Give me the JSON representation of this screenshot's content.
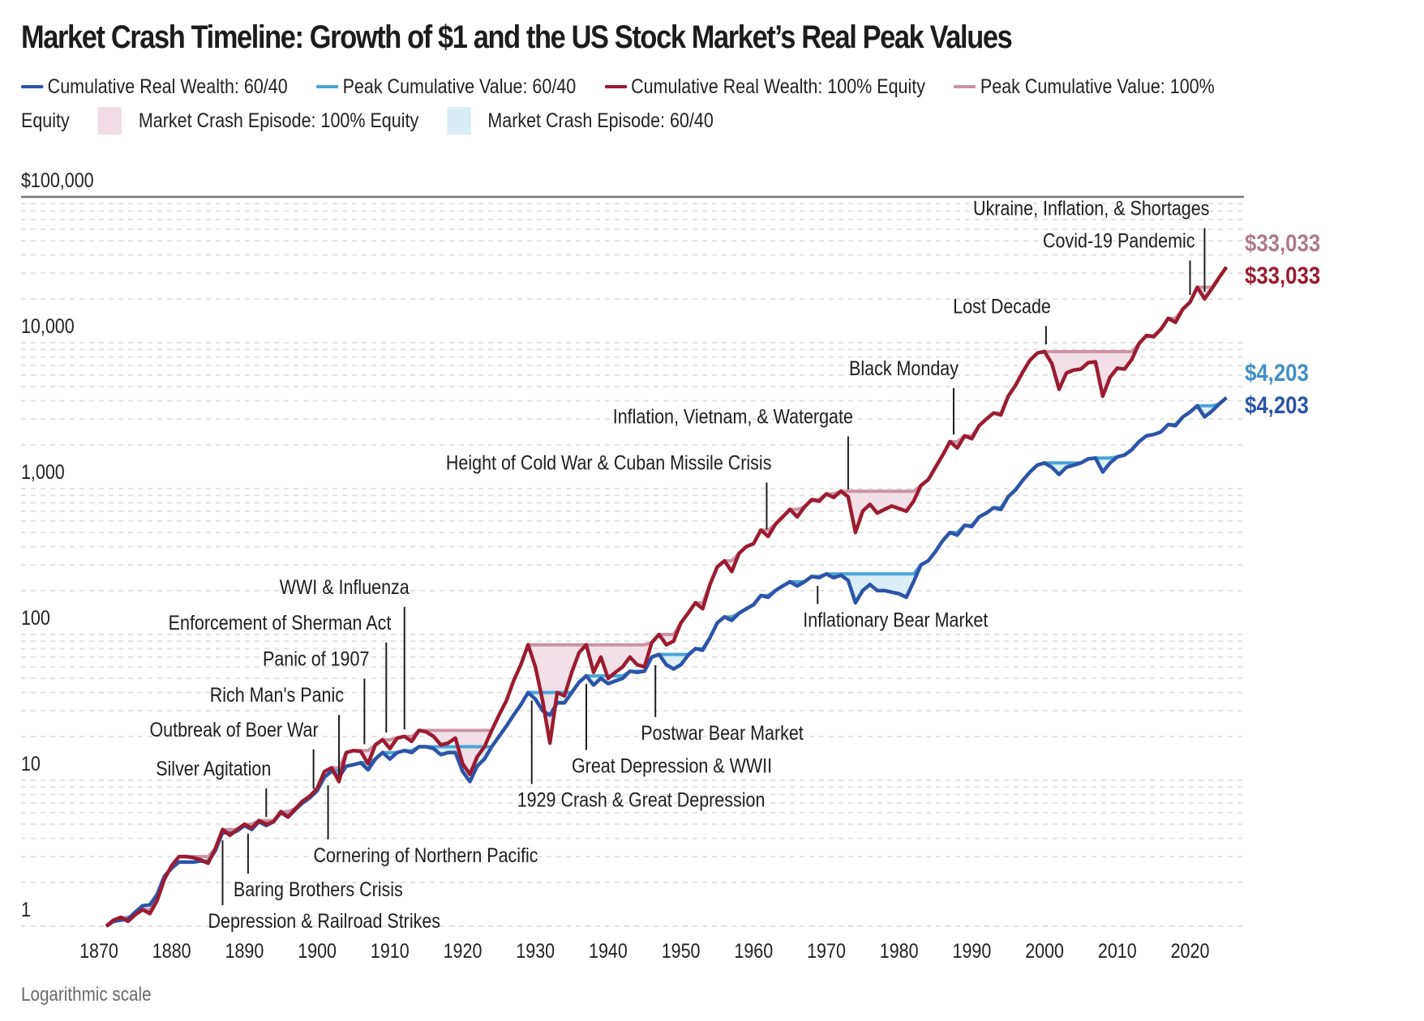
{
  "chart_data": {
    "type": "line",
    "title": "Market Crash Timeline: Growth of $1 and the US Stock Market’s Real Peak Values",
    "footnote": "Logarithmic scale",
    "xlabel": "",
    "ylabel": "",
    "yscale": "log",
    "ylim": [
      1,
      100000
    ],
    "xlim": [
      1870,
      2026
    ],
    "y_ticks": [
      {
        "value": 1,
        "label": "1"
      },
      {
        "value": 10,
        "label": "10"
      },
      {
        "value": 100,
        "label": "100"
      },
      {
        "value": 1000,
        "label": "1,000"
      },
      {
        "value": 10000,
        "label": "10,000"
      },
      {
        "value": 100000,
        "label": "$100,000"
      }
    ],
    "x_ticks": [
      1870,
      1880,
      1890,
      1900,
      1910,
      1920,
      1930,
      1940,
      1950,
      1960,
      1970,
      1980,
      1990,
      2000,
      2010,
      2020
    ],
    "grid": true,
    "legend_position": "top-left",
    "legend": [
      {
        "label": "Cumulative Real Wealth: 60/40",
        "kind": "line",
        "color": "#2c54a8"
      },
      {
        "label": "Peak Cumulative Value: 60/40",
        "kind": "line",
        "color": "#4aa3d8"
      },
      {
        "label": "Cumulative Real Wealth: 100% Equity",
        "kind": "line",
        "color": "#9b1b30"
      },
      {
        "label": "Peak Cumulative Value: 100% Equity",
        "kind": "line",
        "color": "#cc93a3"
      },
      {
        "label": "Market Crash Episode: 100% Equity",
        "kind": "area",
        "color": "#f1dde6"
      },
      {
        "label": "Market Crash Episode: 60/40",
        "kind": "area",
        "color": "#d8edf6"
      }
    ],
    "x": [
      1871,
      1872,
      1873,
      1874,
      1875,
      1876,
      1877,
      1878,
      1879,
      1880,
      1881,
      1882,
      1883,
      1884,
      1885,
      1886,
      1887,
      1888,
      1889,
      1890,
      1891,
      1892,
      1893,
      1894,
      1895,
      1896,
      1897,
      1898,
      1899,
      1900,
      1901,
      1902,
      1903,
      1904,
      1905,
      1906,
      1907,
      1908,
      1909,
      1910,
      1911,
      1912,
      1913,
      1914,
      1915,
      1916,
      1917,
      1918,
      1919,
      1920,
      1921,
      1922,
      1923,
      1924,
      1925,
      1926,
      1927,
      1928,
      1929,
      1930,
      1931,
      1932,
      1933,
      1934,
      1935,
      1936,
      1937,
      1938,
      1939,
      1940,
      1941,
      1942,
      1943,
      1944,
      1945,
      1946,
      1947,
      1948,
      1949,
      1950,
      1951,
      1952,
      1953,
      1954,
      1955,
      1956,
      1957,
      1958,
      1959,
      1960,
      1961,
      1962,
      1963,
      1964,
      1965,
      1966,
      1967,
      1968,
      1969,
      1970,
      1971,
      1972,
      1973,
      1974,
      1975,
      1976,
      1977,
      1978,
      1979,
      1980,
      1981,
      1982,
      1983,
      1984,
      1985,
      1986,
      1987,
      1988,
      1989,
      1990,
      1991,
      1992,
      1993,
      1994,
      1995,
      1996,
      1997,
      1998,
      1999,
      2000,
      2001,
      2002,
      2003,
      2004,
      2005,
      2006,
      2007,
      2008,
      2009,
      2010,
      2011,
      2012,
      2013,
      2014,
      2015,
      2016,
      2017,
      2018,
      2019,
      2020,
      2021,
      2022,
      2023,
      2024,
      2025
    ],
    "series": [
      {
        "name": "Cumulative Real Wealth: 100% Equity",
        "color": "#9b1b30",
        "values": [
          1.0,
          1.1,
          1.15,
          1.08,
          1.2,
          1.3,
          1.22,
          1.5,
          2.1,
          2.6,
          3.0,
          3.0,
          2.95,
          2.85,
          2.7,
          3.4,
          4.6,
          4.2,
          4.6,
          5.0,
          4.7,
          5.3,
          5.0,
          5.2,
          6.1,
          5.6,
          6.4,
          7.2,
          7.8,
          8.8,
          11.5,
          12.2,
          9.8,
          15.5,
          16.0,
          15.8,
          13.0,
          17.5,
          19.0,
          16.5,
          19.5,
          20.0,
          18.5,
          22.0,
          21.5,
          20.0,
          17.5,
          18.0,
          19.5,
          13.0,
          11.0,
          14.5,
          17.0,
          22.0,
          28.0,
          35.0,
          48.0,
          62.0,
          85.0,
          60.0,
          35.0,
          18.0,
          40.0,
          38.0,
          55.0,
          75.0,
          85.0,
          55.0,
          70.0,
          50.0,
          55.0,
          60.0,
          70.0,
          62.0,
          60.0,
          88.0,
          100.0,
          85.0,
          90.0,
          120.0,
          140.0,
          165.0,
          150.0,
          220.0,
          290.0,
          320.0,
          270.0,
          360.0,
          400.0,
          420.0,
          520.0,
          470.0,
          570.0,
          640.0,
          720.0,
          640.0,
          750.0,
          840.0,
          820.0,
          920.0,
          870.0,
          960.0,
          880.0,
          500.0,
          700.0,
          780.0,
          680.0,
          720.0,
          760.0,
          730.0,
          700.0,
          820.0,
          1050.0,
          1150.0,
          1400.0,
          1700.0,
          2100.0,
          1900.0,
          2300.0,
          2200.0,
          2700.0,
          3000.0,
          3300.0,
          3200.0,
          4300.0,
          5100.0,
          6300.0,
          7600.0,
          8500.0,
          8700.0,
          7200.0,
          4800.0,
          6200.0,
          6500.0,
          6600.0,
          7300.0,
          7400.0,
          4300.0,
          5800.0,
          6700.0,
          6600.0,
          7700.0,
          9900.0,
          11200.0,
          11000.0,
          12400.0,
          14700.0,
          13800.0,
          17000.0,
          19000.0,
          24000.0,
          20000.0,
          23500.0,
          28000.0,
          33033.0
        ]
      },
      {
        "name": "Cumulative Real Wealth: 60/40",
        "color": "#2c54a8",
        "values": [
          1.0,
          1.08,
          1.1,
          1.12,
          1.25,
          1.38,
          1.4,
          1.65,
          2.2,
          2.5,
          2.75,
          2.75,
          2.75,
          2.8,
          2.75,
          3.3,
          4.4,
          4.3,
          4.5,
          4.9,
          4.6,
          5.2,
          4.9,
          5.2,
          6.0,
          5.6,
          6.3,
          7.0,
          7.6,
          8.5,
          10.5,
          11.6,
          10.5,
          12.5,
          12.8,
          13.2,
          11.8,
          14.0,
          15.5,
          14.0,
          15.5,
          16.0,
          15.5,
          17.0,
          17.0,
          16.5,
          15.0,
          15.5,
          15.5,
          11.5,
          9.8,
          12.5,
          14.0,
          17.0,
          20.0,
          23.5,
          28.0,
          33.0,
          40.0,
          36.0,
          30.0,
          28.0,
          34.0,
          34.0,
          40.0,
          47.0,
          52.0,
          45.0,
          50.0,
          46.0,
          48.0,
          50.0,
          56.0,
          55.0,
          56.0,
          70.0,
          73.0,
          62.0,
          58.0,
          62.0,
          72.0,
          80.0,
          78.0,
          95.0,
          120.0,
          132.0,
          125.0,
          140.0,
          150.0,
          160.0,
          185.0,
          180.0,
          200.0,
          215.0,
          230.0,
          215.0,
          230.0,
          250.0,
          245.0,
          260.0,
          245.0,
          255.0,
          235.0,
          165.0,
          200.0,
          220.0,
          200.0,
          200.0,
          195.0,
          190.0,
          180.0,
          230.0,
          300.0,
          320.0,
          370.0,
          440.0,
          500.0,
          480.0,
          560.0,
          550.0,
          640.0,
          680.0,
          740.0,
          720.0,
          880.0,
          980.0,
          1140.0,
          1300.0,
          1450.0,
          1500.0,
          1400.0,
          1250.0,
          1400.0,
          1450.0,
          1500.0,
          1600.0,
          1620.0,
          1300.0,
          1500.0,
          1650.0,
          1700.0,
          1850.0,
          2100.0,
          2300.0,
          2350.0,
          2450.0,
          2750.0,
          2700.0,
          3100.0,
          3350.0,
          3700.0,
          3100.0,
          3400.0,
          3800.0,
          4203.0
        ]
      }
    ],
    "peak_series": [
      {
        "name": "Peak Cumulative Value: 100% Equity",
        "color": "#cc93a3",
        "series_index": 0
      },
      {
        "name": "Peak Cumulative Value: 60/40",
        "color": "#4aa3d8",
        "series_index": 1
      }
    ],
    "end_labels": [
      {
        "text": "$33,033",
        "value": 33033,
        "color": "#b07a89",
        "series": "Peak Cumulative Value: 100% Equity"
      },
      {
        "text": "$33,033",
        "value": 33033,
        "color": "#9b1b30",
        "series": "Cumulative Real Wealth: 100% Equity"
      },
      {
        "text": "$4,203",
        "value": 4203,
        "color": "#3f8fc7",
        "series": "Peak Cumulative Value: 60/40"
      },
      {
        "text": "$4,203",
        "value": 4203,
        "color": "#2c54a8",
        "series": "Cumulative Real Wealth: 60/40"
      }
    ],
    "annotations": [
      {
        "text": "Depression & Railroad Strikes",
        "year": 1887,
        "side": "below",
        "label_value": 0.975
      },
      {
        "text": "Baring Brothers Crisis",
        "year": 1890.5,
        "side": "below",
        "label_value": 1.6
      },
      {
        "text": "Silver Agitation",
        "year": 1893,
        "side": "above",
        "label_value": 10.8
      },
      {
        "text": "Cornering of Northern Pacific",
        "year": 1901.5,
        "side": "below",
        "label_value": 2.75
      },
      {
        "text": "Outbreak of Boer War",
        "year": 1899.5,
        "side": "above",
        "label_value": 20.0
      },
      {
        "text": "Rich Man's Panic",
        "year": 1903,
        "side": "above",
        "label_value": 34.5
      },
      {
        "text": "Panic of 1907",
        "year": 1906.5,
        "side": "above",
        "label_value": 61.0
      },
      {
        "text": "Enforcement of Sherman Act",
        "year": 1909.5,
        "side": "above",
        "label_value": 108.0
      },
      {
        "text": "WWI & Influenza",
        "year": 1912,
        "side": "above",
        "label_value": 190.0
      },
      {
        "text": "1929 Crash & Great Depression",
        "year": 1929.5,
        "side": "below",
        "label_value": 6.6
      },
      {
        "text": "Great Depression & WWII",
        "year": 1937,
        "side": "below",
        "label_value": 11.3
      },
      {
        "text": "Postwar Bear Market",
        "year": 1946.5,
        "side": "below",
        "label_value": 19.0
      },
      {
        "text": "Height of Cold War & Cuban Missile Crisis",
        "year": 1961.8,
        "side": "above",
        "label_value": 1350.0
      },
      {
        "text": "Inflationary Bear Market",
        "year": 1968.8,
        "side": "below",
        "label_value": 113.0
      },
      {
        "text": "Inflation, Vietnam, & Watergate",
        "year": 1973,
        "side": "above",
        "label_value": 2800.0
      },
      {
        "text": "Black Monday",
        "year": 1987.5,
        "side": "above",
        "label_value": 6000.0
      },
      {
        "text": "Lost Decade",
        "year": 2000.2,
        "side": "above",
        "label_value": 16000.0
      },
      {
        "text": "Covid-19 Pandemic",
        "year": 2020,
        "side": "above",
        "label_value": 45000.0
      },
      {
        "text": "Ukraine, Inflation, & Shortages",
        "year": 2022,
        "side": "above",
        "label_value": 75000.0
      }
    ]
  }
}
